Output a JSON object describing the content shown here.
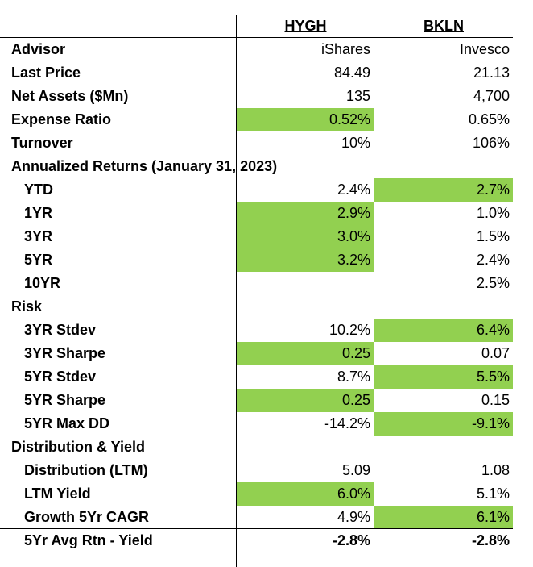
{
  "header": {
    "hygh_ticker": "HYGH",
    "bkln_ticker": "BKLN"
  },
  "rows": [
    {
      "label": "Advisor",
      "hygh": "iShares",
      "bkln": "Invesco",
      "indent": false,
      "hygh_hl": false,
      "bkln_hl": false
    },
    {
      "label": "Last Price",
      "hygh": "84.49",
      "bkln": "21.13",
      "indent": false,
      "hygh_hl": false,
      "bkln_hl": false
    },
    {
      "label": "Net Assets ($Mn)",
      "hygh": "135",
      "bkln": "4,700",
      "indent": false,
      "hygh_hl": false,
      "bkln_hl": false
    },
    {
      "label": "Expense Ratio",
      "hygh": "0.52%",
      "bkln": "0.65%",
      "indent": false,
      "hygh_hl": true,
      "bkln_hl": false
    },
    {
      "label": "Turnover",
      "hygh": "10%",
      "bkln": "106%",
      "indent": false,
      "hygh_hl": false,
      "bkln_hl": false
    },
    {
      "label": "Annualized Returns (January 31, 2023)",
      "hygh": "",
      "bkln": "",
      "indent": false,
      "hygh_hl": false,
      "bkln_hl": false
    },
    {
      "label": "YTD",
      "hygh": "2.4%",
      "bkln": "2.7%",
      "indent": true,
      "hygh_hl": false,
      "bkln_hl": true
    },
    {
      "label": "1YR",
      "hygh": "2.9%",
      "bkln": "1.0%",
      "indent": true,
      "hygh_hl": true,
      "bkln_hl": false
    },
    {
      "label": "3YR",
      "hygh": "3.0%",
      "bkln": "1.5%",
      "indent": true,
      "hygh_hl": true,
      "bkln_hl": false
    },
    {
      "label": "5YR",
      "hygh": "3.2%",
      "bkln": "2.4%",
      "indent": true,
      "hygh_hl": true,
      "bkln_hl": false
    },
    {
      "label": "10YR",
      "hygh": "",
      "bkln": "2.5%",
      "indent": true,
      "hygh_hl": false,
      "bkln_hl": false
    },
    {
      "label": "Risk",
      "hygh": "",
      "bkln": "",
      "indent": false,
      "hygh_hl": false,
      "bkln_hl": false
    },
    {
      "label": "3YR Stdev",
      "hygh": "10.2%",
      "bkln": "6.4%",
      "indent": true,
      "hygh_hl": false,
      "bkln_hl": true
    },
    {
      "label": "3YR Sharpe",
      "hygh": "0.25",
      "bkln": "0.07",
      "indent": true,
      "hygh_hl": true,
      "bkln_hl": false
    },
    {
      "label": "5YR Stdev",
      "hygh": "8.7%",
      "bkln": "5.5%",
      "indent": true,
      "hygh_hl": false,
      "bkln_hl": true
    },
    {
      "label": "5YR Sharpe",
      "hygh": "0.25",
      "bkln": "0.15",
      "indent": true,
      "hygh_hl": true,
      "bkln_hl": false
    },
    {
      "label": "5YR Max DD",
      "hygh": "-14.2%",
      "bkln": "-9.1%",
      "indent": true,
      "hygh_hl": false,
      "bkln_hl": true
    },
    {
      "label": "Distribution & Yield",
      "hygh": "",
      "bkln": "",
      "indent": false,
      "hygh_hl": false,
      "bkln_hl": false
    },
    {
      "label": "Distribution (LTM)",
      "hygh": "5.09",
      "bkln": "1.08",
      "indent": true,
      "hygh_hl": false,
      "bkln_hl": false
    },
    {
      "label": "LTM Yield",
      "hygh": "6.0%",
      "bkln": "5.1%",
      "indent": true,
      "hygh_hl": true,
      "bkln_hl": false
    },
    {
      "label": "Growth 5Yr CAGR",
      "hygh": "4.9%",
      "bkln": "6.1%",
      "indent": true,
      "hygh_hl": false,
      "bkln_hl": true
    }
  ],
  "footer": {
    "label": "5Yr Avg Rtn - Yield",
    "hygh": "-2.8%",
    "bkln": "-2.8%"
  },
  "colors": {
    "highlight": "#92d050",
    "text": "#000000",
    "background": "#ffffff"
  }
}
